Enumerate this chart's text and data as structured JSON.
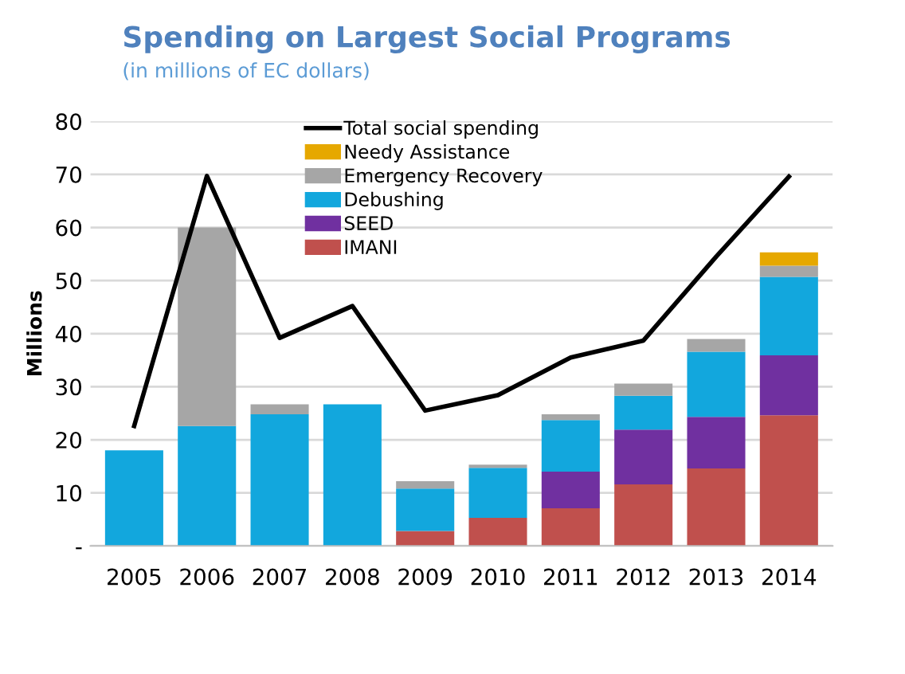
{
  "chart_data": {
    "type": "bar",
    "title": "Spending on Largest Social Programs",
    "subtitle": "(in millions of EC dollars)",
    "ylabel": "Millions",
    "categories": [
      "2005",
      "2006",
      "2007",
      "2008",
      "2009",
      "2010",
      "2011",
      "2012",
      "2013",
      "2014"
    ],
    "stacked": true,
    "series": [
      {
        "name": "IMANI",
        "color": "#c0504d",
        "values": [
          0,
          0,
          0,
          0,
          2.8,
          5.3,
          7.1,
          11.6,
          14.6,
          24.6
        ]
      },
      {
        "name": "SEED",
        "color": "#7030a0",
        "values": [
          0,
          0,
          0,
          0,
          0,
          0,
          6.9,
          10.3,
          9.7,
          11.3
        ]
      },
      {
        "name": "Debushing",
        "color": "#12a7dd",
        "values": [
          18,
          22.6,
          24.8,
          26.7,
          8,
          9.4,
          9.7,
          6.4,
          12.3,
          14.8
        ]
      },
      {
        "name": "Emergency Recovery",
        "color": "#a6a6a6",
        "values": [
          0,
          37.4,
          1.9,
          0,
          1.4,
          0.6,
          1.1,
          2.3,
          2.4,
          2.1
        ]
      },
      {
        "name": "Needy Assistance",
        "color": "#e6a800",
        "values": [
          0,
          0,
          0,
          0,
          0,
          0,
          0,
          0,
          0,
          2.5
        ]
      },
      {
        "name": "Total social spending",
        "type": "line",
        "color": "#000000",
        "values": [
          22.6,
          69.7,
          39.2,
          45.2,
          25.5,
          28.4,
          35.5,
          38.7,
          54.5,
          69.6
        ]
      }
    ],
    "ylim": [
      0,
      80
    ],
    "yticks": [
      {
        "value": 0,
        "label": "-"
      },
      10,
      20,
      30,
      40,
      50,
      60,
      70,
      80
    ],
    "grid": "y",
    "legend": "top",
    "marker": "none",
    "line_style": "solid"
  }
}
